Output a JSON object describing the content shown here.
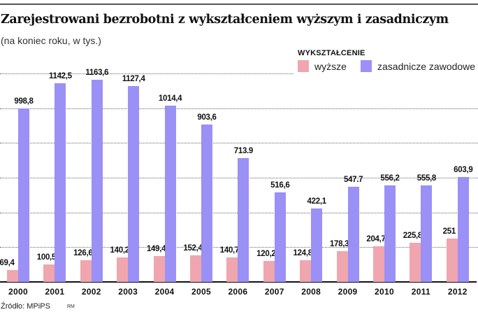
{
  "header": {
    "title": "Zarejestrowani bezrobotni z wykształceniem wyższym i zasadniczym",
    "subtitle": "(na koniec roku, w tys.)"
  },
  "legend": {
    "title": "WYKSZTAŁCENIE",
    "items": [
      {
        "label": "wyższe",
        "color": "#f0a6ae"
      },
      {
        "label": "zasadnicze zawodowe",
        "color": "#9b90f6"
      }
    ]
  },
  "footer": {
    "source": "Źródło: MPiPS",
    "author": "RM"
  },
  "chart_data": {
    "type": "bar",
    "title": "Zarejestrowani bezrobotni z wykształceniem wyższym i zasadniczym",
    "subtitle": "(na koniec roku, w tys.)",
    "xlabel": "",
    "ylabel": "tys.",
    "ylim": [
      0,
      1200
    ],
    "grid": true,
    "gridlines": [
      200,
      400,
      600,
      800,
      1000,
      1200
    ],
    "legend_title": "WYKSZTAŁCENIE",
    "legend_position": "top-right",
    "categories": [
      "2000",
      "2001",
      "2002",
      "2003",
      "2004",
      "2005",
      "2006",
      "2007",
      "2008",
      "2009",
      "2010",
      "2011",
      "2012"
    ],
    "series": [
      {
        "name": "wyższe",
        "color": "#f0a6ae",
        "values": [
          69.4,
          100.5,
          126.6,
          140.2,
          149.4,
          152.4,
          140.7,
          120.2,
          124.8,
          178.3,
          204.7,
          225.8,
          251
        ],
        "labels": [
          "69,4",
          "100,5",
          "126,6",
          "140,2",
          "149,4",
          "152,4",
          "140,7",
          "120,2",
          "124,8",
          "178,3",
          "204,7",
          "225,8",
          "251"
        ]
      },
      {
        "name": "zasadnicze zawodowe",
        "color": "#9b90f6",
        "values": [
          998.8,
          1142.5,
          1163.6,
          1127.4,
          1014.4,
          903.6,
          713.9,
          516.6,
          422.1,
          547.7,
          556.2,
          555.8,
          603.9
        ],
        "labels": [
          "998,8",
          "1142,5",
          "1163,6",
          "1127,4",
          "1014,4",
          "903,6",
          "713.9",
          "516,6",
          "422,1",
          "547.7",
          "556,2",
          "555,8",
          "603,9"
        ]
      }
    ],
    "source": "Źródło: MPiPS"
  }
}
